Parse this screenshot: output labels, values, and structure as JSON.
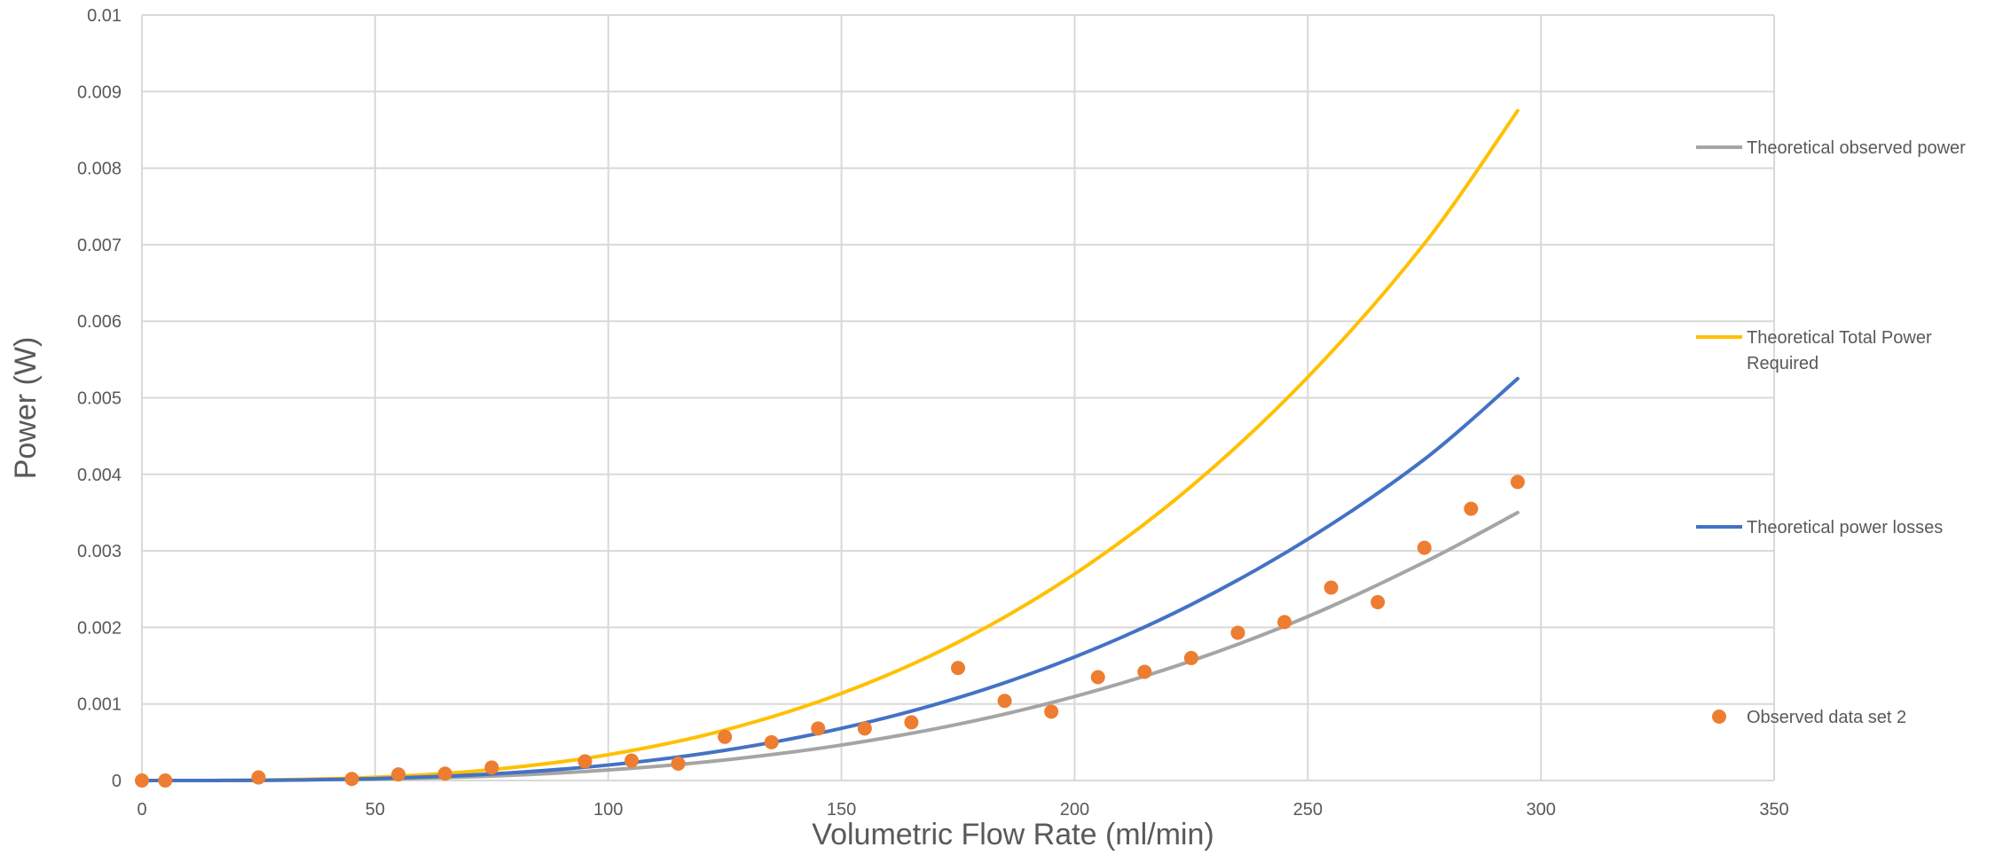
{
  "chart_data": {
    "type": "scatter",
    "title": "",
    "xlabel": "Volumetric Flow Rate (ml/min)",
    "ylabel": "Power  (W)",
    "xlim": [
      0,
      350
    ],
    "ylim": [
      0,
      0.01
    ],
    "x_ticks": [
      "0",
      "50",
      "100",
      "150",
      "200",
      "250",
      "300",
      "350"
    ],
    "y_ticks": [
      "0",
      "0.001",
      "0.002",
      "0.003",
      "0.004",
      "0.005",
      "0.006",
      "0.007",
      "0.008",
      "0.009",
      "0.01"
    ],
    "grid": true,
    "legend_position": "right",
    "series": [
      {
        "name": "Theoretical observed power",
        "kind": "line",
        "color": "#a5a5a5",
        "x": [
          0,
          25,
          50,
          75,
          100,
          125,
          150,
          175,
          200,
          225,
          250,
          275,
          295
        ],
        "y": [
          0,
          2e-06,
          1.8e-05,
          5.8e-05,
          0.000137,
          0.000268,
          0.000463,
          0.000735,
          0.001097,
          0.001562,
          0.002142,
          0.002852,
          0.0035
        ]
      },
      {
        "name": "Theoretical Total Power Required",
        "kind": "line",
        "color": "#ffc000",
        "x": [
          0,
          25,
          50,
          75,
          100,
          125,
          150,
          175,
          200,
          225,
          250,
          275,
          295
        ],
        "y": [
          0,
          5e-06,
          4.2e-05,
          0.000142,
          0.000337,
          0.000659,
          0.001138,
          0.001807,
          0.002698,
          0.003842,
          0.00527,
          0.007014,
          0.00875
        ]
      },
      {
        "name": "Theoretical power losses",
        "kind": "line",
        "color": "#4472c4",
        "x": [
          0,
          25,
          50,
          75,
          100,
          125,
          150,
          175,
          200,
          225,
          250,
          275,
          295
        ],
        "y": [
          0,
          3e-06,
          2.5e-05,
          8.5e-05,
          0.000202,
          0.000394,
          0.000681,
          0.001081,
          0.001614,
          0.002298,
          0.003153,
          0.004196,
          0.00525
        ]
      },
      {
        "name": "Observed data set 2",
        "kind": "scatter",
        "color": "#ed7d31",
        "x": [
          0,
          5,
          25,
          45,
          55,
          65,
          75,
          95,
          105,
          115,
          125,
          135,
          145,
          155,
          165,
          175,
          185,
          195,
          205,
          215,
          225,
          235,
          245,
          255,
          265,
          275,
          285,
          295
        ],
        "y": [
          0,
          0,
          4e-05,
          2e-05,
          8e-05,
          9e-05,
          0.00017,
          0.00025,
          0.00026,
          0.00022,
          0.00057,
          0.0005,
          0.00068,
          0.00068,
          0.00076,
          0.00147,
          0.00104,
          0.0009,
          0.00135,
          0.00142,
          0.0016,
          0.00193,
          0.00207,
          0.00252,
          0.00233,
          0.00304,
          0.00355,
          0.0039
        ]
      }
    ]
  }
}
